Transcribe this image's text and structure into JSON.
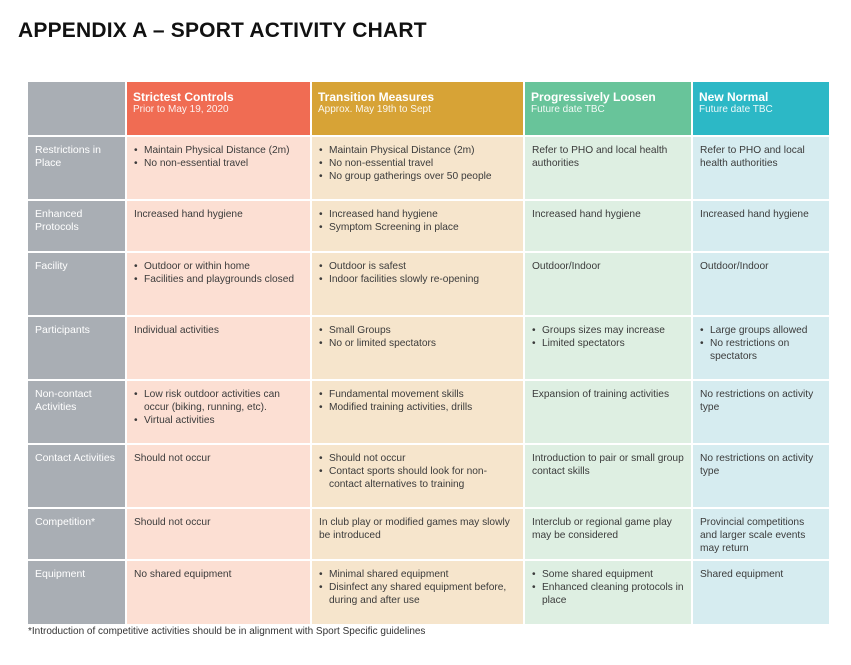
{
  "title": "APPENDIX A – SPORT ACTIVITY CHART",
  "columns": [
    {
      "title": "Strictest Controls",
      "subtitle": "Prior to May 19, 2020",
      "color": "#f06c53"
    },
    {
      "title": "Transition Measures",
      "subtitle": "Approx. May 19th to Sept",
      "color": "#d7a336"
    },
    {
      "title": "Progressively Loosen",
      "subtitle": "Future date TBC",
      "color": "#68c49a"
    },
    {
      "title": "New Normal",
      "subtitle": "Future date TBC",
      "color": "#2cb8c6"
    }
  ],
  "rows": [
    {
      "label": "Restrictions in Place",
      "cells": [
        {
          "bullets": [
            "Maintain Physical Distance (2m)",
            "No non-essential travel"
          ]
        },
        {
          "bullets": [
            "Maintain Physical Distance (2m)",
            "No non-essential travel",
            "No group gatherings over 50 people"
          ]
        },
        {
          "text": "Refer to PHO and local health authorities"
        },
        {
          "text": "Refer to PHO and local health authorities"
        }
      ]
    },
    {
      "label": "Enhanced Protocols",
      "cells": [
        {
          "text": "Increased hand hygiene"
        },
        {
          "bullets": [
            "Increased hand hygiene",
            "Symptom Screening in place"
          ]
        },
        {
          "text": "Increased hand hygiene"
        },
        {
          "text": "Increased hand hygiene"
        }
      ]
    },
    {
      "label": "Facility",
      "cells": [
        {
          "bullets": [
            "Outdoor or within home",
            "Facilities and playgrounds closed"
          ]
        },
        {
          "bullets": [
            "Outdoor is safest",
            "Indoor facilities slowly re-opening"
          ]
        },
        {
          "text": "Outdoor/Indoor"
        },
        {
          "text": "Outdoor/Indoor"
        }
      ]
    },
    {
      "label": "Participants",
      "cells": [
        {
          "text": "Individual activities"
        },
        {
          "bullets": [
            "Small Groups",
            "No or limited spectators"
          ]
        },
        {
          "bullets": [
            "Groups sizes may increase",
            "Limited spectators"
          ]
        },
        {
          "bullets": [
            "Large groups allowed",
            "No restrictions on spectators"
          ]
        }
      ]
    },
    {
      "label": "Non-contact Activities",
      "cells": [
        {
          "bullets": [
            "Low risk outdoor activities can occur (biking, running, etc).",
            "Virtual activities"
          ]
        },
        {
          "bullets": [
            "Fundamental movement skills",
            "Modified training activities, drills"
          ]
        },
        {
          "text": "Expansion of training activities"
        },
        {
          "text": "No restrictions on activity type"
        }
      ]
    },
    {
      "label": "Contact Activities",
      "cells": [
        {
          "text": "Should not occur"
        },
        {
          "bullets": [
            "Should not occur",
            "Contact sports should look for non-contact alternatives to training"
          ]
        },
        {
          "text": "Introduction to pair or small group contact skills"
        },
        {
          "text": "No restrictions on activity type"
        }
      ]
    },
    {
      "label": "Competition*",
      "cells": [
        {
          "text": "Should not occur"
        },
        {
          "text": "In club play or modified games may slowly be introduced"
        },
        {
          "text": "Interclub or regional game play may be considered"
        },
        {
          "text": "Provincial competitions and larger scale events may return"
        }
      ]
    },
    {
      "label": "Equipment",
      "cells": [
        {
          "text": "No shared equipment"
        },
        {
          "bullets": [
            "Minimal shared equipment",
            "Disinfect any shared equipment before, during and after use"
          ]
        },
        {
          "bullets": [
            "Some shared equipment",
            "Enhanced cleaning protocols in place"
          ]
        },
        {
          "text": "Shared equipment"
        }
      ]
    }
  ],
  "footnote": "*Introduction of competitive activities should be in alignment with Sport Specific guidelines"
}
